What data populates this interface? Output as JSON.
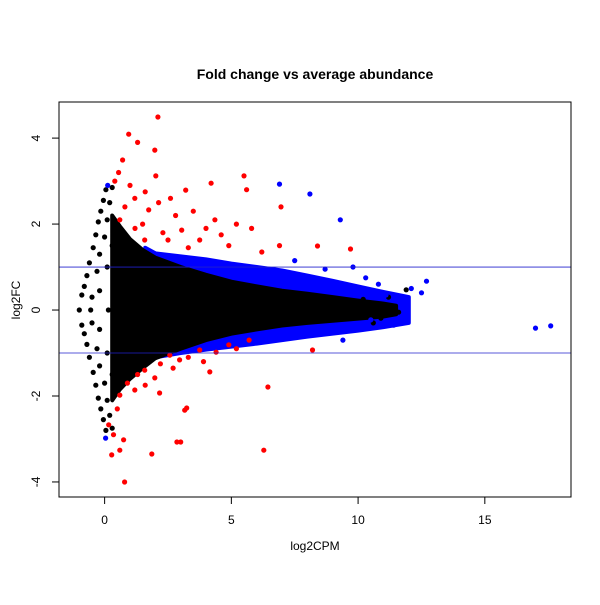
{
  "chart_data": {
    "type": "scatter",
    "title": "Fold change vs average abundance",
    "xlabel": "log2CPM",
    "ylabel": "log2FC",
    "xlim": [
      -1.8,
      18.4
    ],
    "ylim": [
      -4.35,
      4.84
    ],
    "xticks": [
      0,
      5,
      10,
      15
    ],
    "yticks": [
      -4,
      -2,
      0,
      2,
      4
    ],
    "grid": false,
    "reference_lines_y": [
      1,
      -1
    ],
    "colors": {
      "not_de": "#000000",
      "de": "#ff0000",
      "de_high_abundance": "#0000ff",
      "reference_line": "#2020cc"
    },
    "dense_regions": [
      {
        "color_key": "de_high_abundance",
        "upper": [
          [
            1.6,
            1.45
          ],
          [
            2,
            1.32
          ],
          [
            3,
            1.25
          ],
          [
            4,
            1.18
          ],
          [
            5,
            1.08
          ],
          [
            6,
            1.0
          ],
          [
            7,
            0.92
          ],
          [
            8,
            0.8
          ],
          [
            9,
            0.68
          ],
          [
            10,
            0.55
          ],
          [
            11,
            0.42
          ],
          [
            12,
            0.3
          ]
        ],
        "lower": [
          [
            12,
            -0.3
          ],
          [
            11,
            -0.4
          ],
          [
            10,
            -0.48
          ],
          [
            9,
            -0.55
          ],
          [
            8,
            -0.62
          ],
          [
            7,
            -0.7
          ],
          [
            6,
            -0.78
          ],
          [
            5,
            -0.85
          ],
          [
            4,
            -0.92
          ],
          [
            3,
            -1.0
          ],
          [
            2,
            -1.1
          ],
          [
            1.6,
            -1.2
          ]
        ]
      },
      {
        "color_key": "not_de",
        "upper": [
          [
            0.3,
            2.2
          ],
          [
            0.6,
            1.95
          ],
          [
            1,
            1.65
          ],
          [
            1.5,
            1.4
          ],
          [
            2,
            1.22
          ],
          [
            3,
            1.0
          ],
          [
            4,
            0.82
          ],
          [
            5,
            0.66
          ],
          [
            6,
            0.55
          ],
          [
            7,
            0.45
          ],
          [
            8,
            0.38
          ],
          [
            9,
            0.3
          ],
          [
            10,
            0.22
          ],
          [
            11,
            0.15
          ],
          [
            11.5,
            0.1
          ]
        ],
        "lower": [
          [
            11.5,
            -0.1
          ],
          [
            11,
            -0.15
          ],
          [
            10,
            -0.2
          ],
          [
            9,
            -0.25
          ],
          [
            8,
            -0.3
          ],
          [
            7,
            -0.36
          ],
          [
            6,
            -0.45
          ],
          [
            5,
            -0.55
          ],
          [
            4,
            -0.7
          ],
          [
            3,
            -0.9
          ],
          [
            2,
            -1.12
          ],
          [
            1.5,
            -1.35
          ],
          [
            1,
            -1.6
          ],
          [
            0.6,
            -1.85
          ],
          [
            0.3,
            -2.1
          ]
        ]
      }
    ],
    "series": [
      {
        "color_key": "not_de",
        "points": [
          [
            -1.0,
            0
          ],
          [
            -0.9,
            0.35
          ],
          [
            -0.9,
            -0.35
          ],
          [
            -0.7,
            0.8
          ],
          [
            -0.7,
            -0.8
          ],
          [
            -0.6,
            1.1
          ],
          [
            -0.6,
            -1.1
          ],
          [
            -0.45,
            1.45
          ],
          [
            -0.45,
            -1.45
          ],
          [
            -0.35,
            1.75
          ],
          [
            -0.35,
            -1.75
          ],
          [
            -0.25,
            2.05
          ],
          [
            -0.25,
            -2.05
          ],
          [
            -0.15,
            2.3
          ],
          [
            -0.15,
            -2.3
          ],
          [
            -0.05,
            2.55
          ],
          [
            -0.05,
            -2.55
          ],
          [
            0.05,
            2.8
          ],
          [
            0.05,
            -2.8
          ],
          [
            -0.8,
            0.55
          ],
          [
            -0.8,
            -0.55
          ],
          [
            -0.5,
            0.3
          ],
          [
            -0.5,
            -0.3
          ],
          [
            -0.3,
            0.9
          ],
          [
            -0.3,
            -0.9
          ],
          [
            -0.2,
            1.3
          ],
          [
            -0.2,
            -1.3
          ],
          [
            0,
            1.7
          ],
          [
            0,
            -1.7
          ],
          [
            0.1,
            2.1
          ],
          [
            0.1,
            -2.1
          ],
          [
            0.2,
            2.5
          ],
          [
            0.2,
            -2.45
          ],
          [
            0.3,
            2.85
          ],
          [
            0.3,
            -2.75
          ],
          [
            -0.2,
            0.45
          ],
          [
            -0.2,
            -0.45
          ],
          [
            0.1,
            1.0
          ],
          [
            0.1,
            -1.0
          ],
          [
            0.3,
            1.5
          ],
          [
            0.3,
            -1.5
          ],
          [
            0.15,
            0
          ],
          [
            -0.55,
            0
          ],
          [
            10.9,
            -0.19
          ],
          [
            11.3,
            -0.1
          ],
          [
            11.9,
            0.47
          ],
          [
            11.2,
            0.3
          ],
          [
            10.6,
            -0.3
          ],
          [
            10.2,
            0.25
          ],
          [
            11.6,
            -0.05
          ]
        ]
      },
      {
        "color_key": "de",
        "points": [
          [
            0.95,
            4.09
          ],
          [
            2.1,
            4.49
          ],
          [
            1.98,
            3.72
          ],
          [
            1.3,
            3.9
          ],
          [
            0.71,
            3.49
          ],
          [
            0.55,
            3.2
          ],
          [
            0.4,
            3.0
          ],
          [
            2.02,
            3.12
          ],
          [
            5.5,
            3.12
          ],
          [
            5.6,
            2.8
          ],
          [
            6.96,
            2.4
          ],
          [
            6.2,
            1.35
          ],
          [
            5.2,
            2.0
          ],
          [
            4.2,
            2.95
          ],
          [
            3.2,
            2.79
          ],
          [
            2.13,
            2.5
          ],
          [
            4.35,
            2.1
          ],
          [
            3.04,
            1.86
          ],
          [
            1.19,
            2.6
          ],
          [
            1.74,
            2.33
          ],
          [
            0.6,
            2.1
          ],
          [
            3.75,
            1.63
          ],
          [
            8.4,
            1.49
          ],
          [
            9.7,
            1.42
          ],
          [
            2.5,
            1.63
          ],
          [
            1.58,
            1.63
          ],
          [
            4.9,
            1.5
          ],
          [
            6.9,
            1.5
          ],
          [
            1.0,
            2.9
          ],
          [
            1.5,
            2.0
          ],
          [
            2.8,
            2.2
          ],
          [
            3.5,
            2.3
          ],
          [
            4.0,
            1.9
          ],
          [
            4.6,
            1.75
          ],
          [
            5.8,
            1.9
          ],
          [
            2.3,
            1.8
          ],
          [
            1.2,
            1.9
          ],
          [
            3.3,
            1.45
          ],
          [
            2.6,
            2.6
          ],
          [
            0.8,
            2.4
          ],
          [
            1.6,
            2.75
          ],
          [
            0.79,
            -4.0
          ],
          [
            1.86,
            -3.35
          ],
          [
            2.85,
            -3.07
          ],
          [
            3.0,
            -3.07
          ],
          [
            6.28,
            -3.26
          ],
          [
            6.44,
            -1.79
          ],
          [
            8.2,
            -0.93
          ],
          [
            3.16,
            -2.33
          ],
          [
            3.24,
            -2.28
          ],
          [
            2.17,
            -1.93
          ],
          [
            0.6,
            -3.26
          ],
          [
            0.28,
            -3.37
          ],
          [
            0.75,
            -3.02
          ],
          [
            0.16,
            -2.67
          ],
          [
            1.58,
            -1.4
          ],
          [
            2.57,
            -1.05
          ],
          [
            3.75,
            -0.93
          ],
          [
            4.9,
            -0.81
          ],
          [
            5.7,
            -0.7
          ],
          [
            4.15,
            -1.44
          ],
          [
            1.19,
            -1.86
          ],
          [
            0.6,
            -1.98
          ],
          [
            2.96,
            -1.16
          ],
          [
            1.98,
            -1.58
          ],
          [
            1.3,
            -1.5
          ],
          [
            2.2,
            -1.25
          ],
          [
            3.3,
            -1.1
          ],
          [
            4.4,
            -0.98
          ],
          [
            5.2,
            -0.9
          ],
          [
            0.5,
            -2.3
          ],
          [
            0.35,
            -2.9
          ],
          [
            1.6,
            -1.75
          ],
          [
            2.7,
            -1.35
          ],
          [
            3.9,
            -1.2
          ],
          [
            0.9,
            -1.7
          ]
        ]
      },
      {
        "color_key": "de_high_abundance",
        "points": [
          [
            6.9,
            2.93
          ],
          [
            8.1,
            2.7
          ],
          [
            9.3,
            2.1
          ],
          [
            12.7,
            0.67
          ],
          [
            12.5,
            0.4
          ],
          [
            17.0,
            -0.42
          ],
          [
            17.6,
            -0.37
          ],
          [
            0.04,
            -2.98
          ],
          [
            0.12,
            2.9
          ],
          [
            11.7,
            0.23
          ],
          [
            11.1,
            0.35
          ],
          [
            10.5,
            -0.23
          ],
          [
            9.8,
            1.0
          ],
          [
            10.3,
            0.75
          ],
          [
            12.1,
            0.5
          ],
          [
            11.4,
            -0.35
          ],
          [
            9.4,
            -0.7
          ],
          [
            8.7,
            0.95
          ],
          [
            7.5,
            1.15
          ],
          [
            10.8,
            0.6
          ]
        ]
      }
    ]
  }
}
